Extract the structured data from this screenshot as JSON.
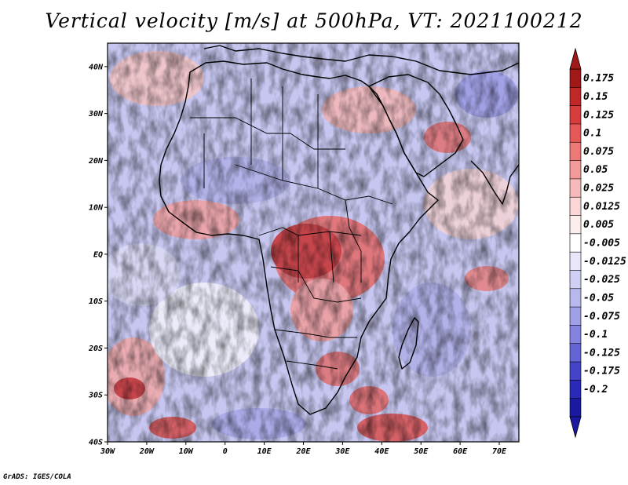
{
  "title": "Vertical velocity [m/s] at 500hPa, VT: 2021100212",
  "credit": "GrADS: IGES/COLA",
  "map": {
    "region": "Africa",
    "lon_range": [
      -30,
      75
    ],
    "lat_range": [
      -40,
      45
    ],
    "lon_ticks": [
      {
        "value": -30,
        "label": "30W"
      },
      {
        "value": -20,
        "label": "20W"
      },
      {
        "value": -10,
        "label": "10W"
      },
      {
        "value": 0,
        "label": "0"
      },
      {
        "value": 10,
        "label": "10E"
      },
      {
        "value": 20,
        "label": "20E"
      },
      {
        "value": 30,
        "label": "30E"
      },
      {
        "value": 40,
        "label": "40E"
      },
      {
        "value": 50,
        "label": "50E"
      },
      {
        "value": 60,
        "label": "60E"
      },
      {
        "value": 70,
        "label": "70E"
      }
    ],
    "lat_ticks": [
      {
        "value": 40,
        "label": "40N"
      },
      {
        "value": 30,
        "label": "30N"
      },
      {
        "value": 20,
        "label": "20N"
      },
      {
        "value": 10,
        "label": "10N"
      },
      {
        "value": 0,
        "label": "EQ"
      },
      {
        "value": -10,
        "label": "10S"
      },
      {
        "value": -20,
        "label": "20S"
      },
      {
        "value": -30,
        "label": "30S"
      },
      {
        "value": -40,
        "label": "40S"
      }
    ]
  },
  "colorbar": {
    "labels": [
      "0.175",
      "0.15",
      "0.125",
      "0.1",
      "0.075",
      "0.05",
      "0.025",
      "0.0125",
      "0.005",
      "-0.005",
      "-0.0125",
      "-0.025",
      "-0.05",
      "-0.075",
      "-0.1",
      "-0.125",
      "-0.175",
      "-0.2"
    ],
    "colors": [
      "#a01818",
      "#c02828",
      "#d83c3c",
      "#e45858",
      "#ec7878",
      "#f29a9a",
      "#f6baba",
      "#fad6d6",
      "#fdeeee",
      "#ffffff",
      "#e8e8fa",
      "#d0d0f4",
      "#b8b8ee",
      "#a0a0e8",
      "#8484e0",
      "#6464d6",
      "#4444c8",
      "#2a2ab8",
      "#1a1aa0"
    ]
  }
}
